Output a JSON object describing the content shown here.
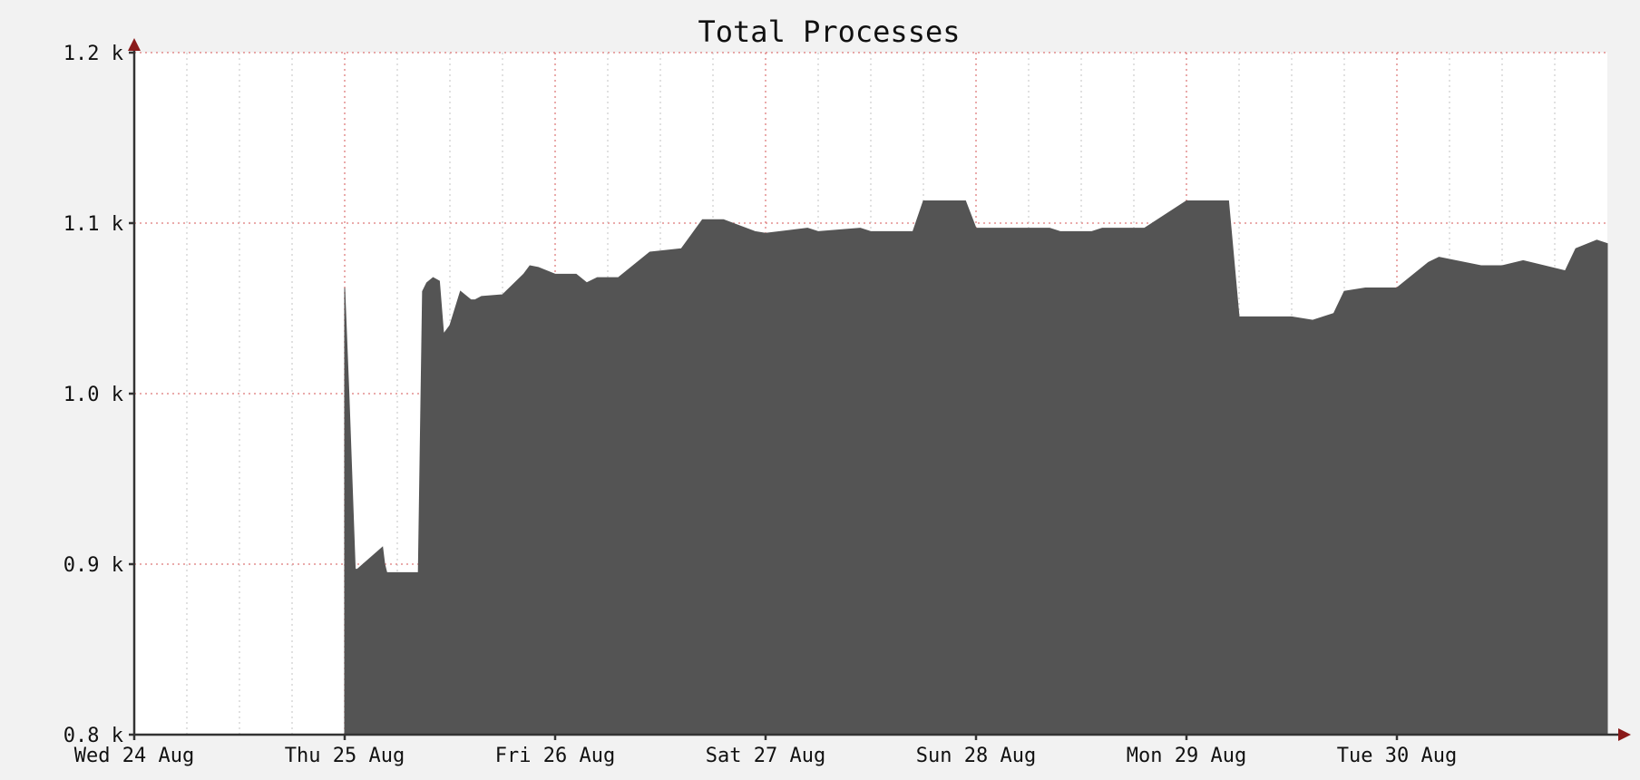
{
  "chart_data": {
    "type": "area",
    "title": "Total Processes",
    "xlabel": "",
    "ylabel": "",
    "y_unit_suffix": " k",
    "ylim": [
      0.8,
      1.2
    ],
    "yticks": [
      {
        "value": 0.8,
        "label": "0.8 k"
      },
      {
        "value": 0.9,
        "label": "0.9 k"
      },
      {
        "value": 1.0,
        "label": "1.0 k"
      },
      {
        "value": 1.1,
        "label": "1.1 k"
      },
      {
        "value": 1.2,
        "label": "1.2 k"
      }
    ],
    "xlim": [
      0,
      7
    ],
    "x_unit": "days since Wed 24 Aug 00:00",
    "xticks": [
      {
        "value": 0,
        "label": "Wed 24 Aug"
      },
      {
        "value": 1,
        "label": "Thu 25 Aug"
      },
      {
        "value": 2,
        "label": "Fri 26 Aug"
      },
      {
        "value": 3,
        "label": "Sat 27 Aug"
      },
      {
        "value": 4,
        "label": "Sun 28 Aug"
      },
      {
        "value": 5,
        "label": "Mon 29 Aug"
      },
      {
        "value": 6,
        "label": "Tue 30 Aug"
      }
    ],
    "grid": true,
    "colors": {
      "fill": "#545454",
      "grid_major": "#e07a7a",
      "grid_minor": "#bdbdbd",
      "axis": "#333333",
      "arrow": "#8a1a1a",
      "plot_bg": "#ffffff",
      "page_bg": "#f2f2f2"
    },
    "series": [
      {
        "x": [
          1.0,
          1.02,
          1.05,
          1.06,
          1.18,
          1.19,
          1.2,
          1.3,
          1.35,
          1.37,
          1.39,
          1.42,
          1.45,
          1.47,
          1.5,
          1.55,
          1.6,
          1.62,
          1.65,
          1.75,
          1.85,
          1.88,
          1.92,
          2.0,
          2.1,
          2.15,
          2.2,
          2.3,
          2.45,
          2.6,
          2.7,
          2.8,
          2.95,
          3.0,
          3.2,
          3.25,
          3.45,
          3.5,
          3.7,
          3.75,
          3.95,
          4.0,
          4.2,
          4.25,
          4.35,
          4.4,
          4.55,
          4.6,
          4.8,
          5.0,
          5.2,
          5.25,
          5.45,
          5.5,
          5.6,
          5.7,
          5.75,
          5.85,
          6.0,
          6.15,
          6.2,
          6.4,
          6.5,
          6.6,
          6.7,
          6.8,
          6.85,
          6.95,
          7.0
        ],
        "y": [
          1.062,
          1.0,
          0.897,
          0.897,
          0.91,
          0.9,
          0.895,
          0.895,
          0.895,
          1.06,
          1.065,
          1.068,
          1.066,
          1.035,
          1.04,
          1.06,
          1.055,
          1.055,
          1.057,
          1.058,
          1.07,
          1.075,
          1.074,
          1.07,
          1.07,
          1.065,
          1.068,
          1.068,
          1.083,
          1.085,
          1.102,
          1.102,
          1.095,
          1.094,
          1.097,
          1.095,
          1.097,
          1.095,
          1.095,
          1.113,
          1.113,
          1.097,
          1.097,
          1.097,
          1.097,
          1.095,
          1.095,
          1.097,
          1.097,
          1.113,
          1.113,
          1.045,
          1.045,
          1.045,
          1.043,
          1.047,
          1.06,
          1.062,
          1.062,
          1.077,
          1.08,
          1.075,
          1.075,
          1.078,
          1.075,
          1.072,
          1.085,
          1.09,
          1.088
        ]
      }
    ]
  }
}
